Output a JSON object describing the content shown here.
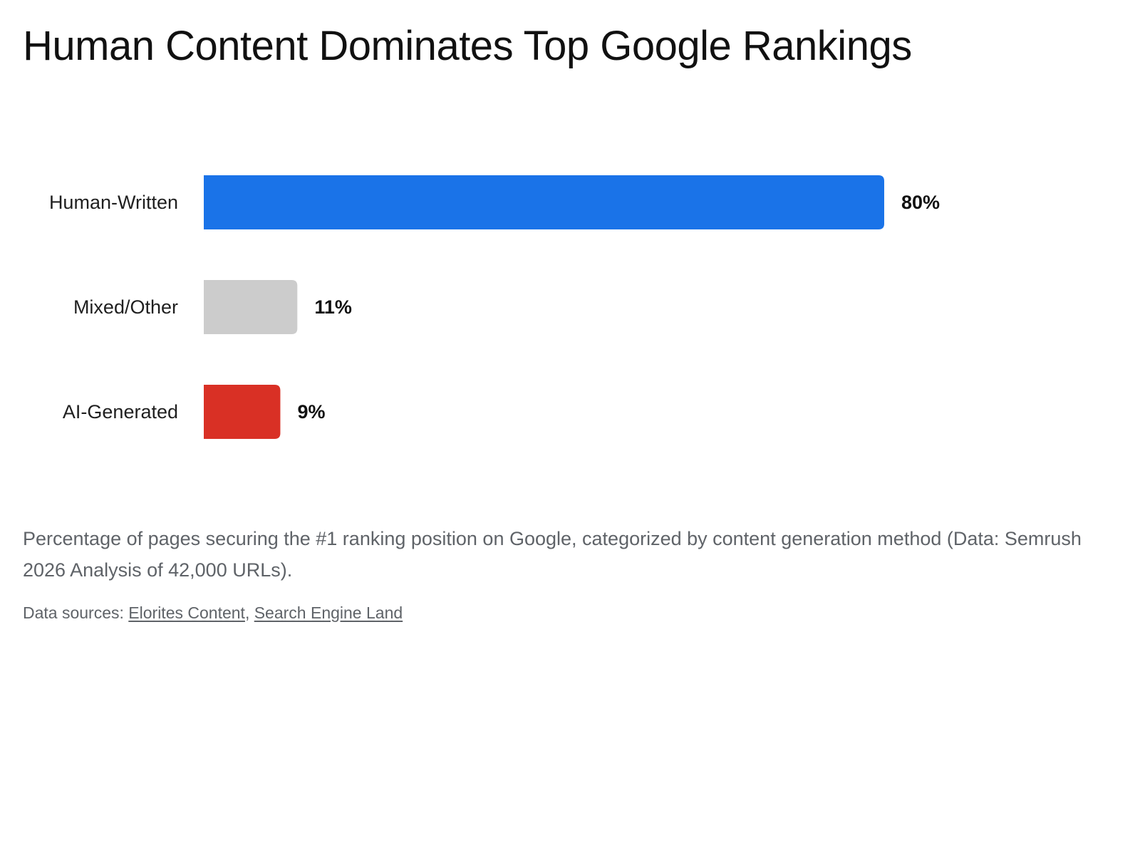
{
  "chart_data": {
    "type": "bar",
    "orientation": "horizontal",
    "title": "Human Content Dominates Top Google Rankings",
    "categories": [
      "Human-Written",
      "Mixed/Other",
      "AI-Generated"
    ],
    "values": [
      80,
      11,
      9
    ],
    "value_labels": [
      "80%",
      "11%",
      "9%"
    ],
    "colors": [
      "#1a73e8",
      "#cccccc",
      "#d93025"
    ],
    "xlim": [
      0,
      80
    ],
    "grid": false,
    "legend": "none",
    "xlabel": "",
    "ylabel": ""
  },
  "caption": "Percentage of pages securing the #1 ranking position on Google, categorized by content generation method (Data: Semrush 2026 Analysis of 42,000 URLs).",
  "sources": {
    "prefix": "Data sources: ",
    "links": [
      "Elorites Content",
      "Search Engine Land"
    ],
    "separator": ", "
  }
}
